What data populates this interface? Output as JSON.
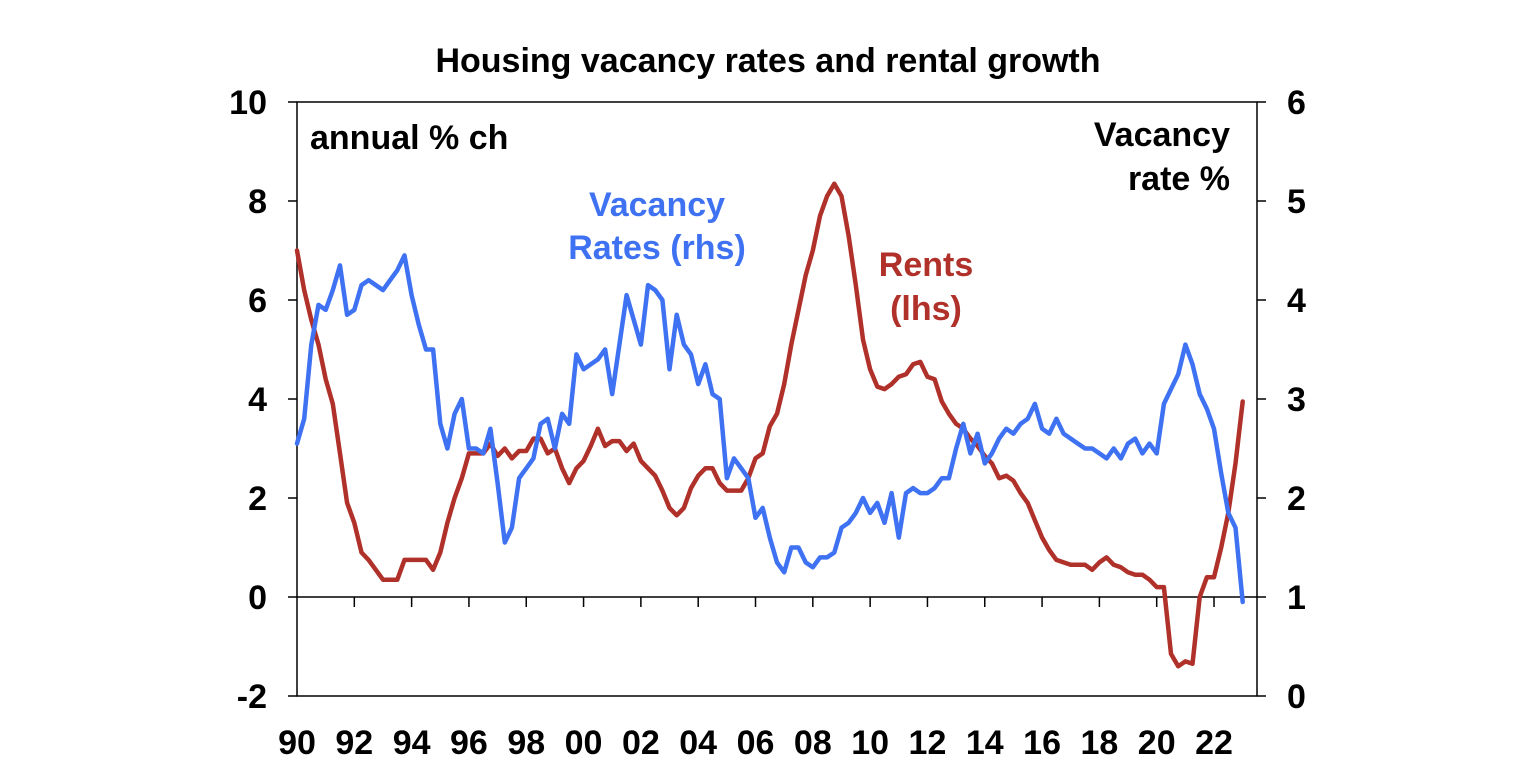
{
  "chart_data": {
    "type": "line",
    "title": "Housing vacancy rates and rental growth",
    "left_axis": {
      "label": "annual % ch",
      "ylim": [
        -2,
        10
      ],
      "ticks": [
        "10",
        "8",
        "6",
        "4",
        "2",
        "0",
        "-2"
      ],
      "tick_values": [
        10,
        8,
        6,
        4,
        2,
        0,
        -2
      ]
    },
    "right_axis": {
      "label_line1": "Vacancy",
      "label_line2": "rate %",
      "ylim": [
        0,
        6
      ],
      "ticks": [
        "6",
        "5",
        "4",
        "3",
        "2",
        "1",
        "0"
      ],
      "tick_values": [
        6,
        5,
        4,
        3,
        2,
        1,
        0
      ]
    },
    "x_ticks": [
      "90",
      "92",
      "94",
      "96",
      "98",
      "00",
      "02",
      "04",
      "06",
      "08",
      "10",
      "12",
      "14",
      "16",
      "18",
      "20",
      "22"
    ],
    "xlim": [
      1990,
      2023.5
    ],
    "series": [
      {
        "name": "Vacancy Rates (rhs)",
        "label_line1": "Vacancy",
        "label_line2": "Rates (rhs)",
        "axis": "right",
        "color": "#3E72F2",
        "x": [
          1990.0,
          1990.25,
          1990.5,
          1990.75,
          1991.0,
          1991.25,
          1991.5,
          1991.75,
          1992.0,
          1992.25,
          1992.5,
          1992.75,
          1993.0,
          1993.25,
          1993.5,
          1993.75,
          1994.0,
          1994.25,
          1994.5,
          1994.75,
          1995.0,
          1995.25,
          1995.5,
          1995.75,
          1996.0,
          1996.25,
          1996.5,
          1996.75,
          1997.0,
          1997.25,
          1997.5,
          1997.75,
          1998.0,
          1998.25,
          1998.5,
          1998.75,
          1999.0,
          1999.25,
          1999.5,
          1999.75,
          2000.0,
          2000.25,
          2000.5,
          2000.75,
          2001.0,
          2001.25,
          2001.5,
          2001.75,
          2002.0,
          2002.25,
          2002.5,
          2002.75,
          2003.0,
          2003.25,
          2003.5,
          2003.75,
          2004.0,
          2004.25,
          2004.5,
          2004.75,
          2005.0,
          2005.25,
          2005.5,
          2005.75,
          2006.0,
          2006.25,
          2006.5,
          2006.75,
          2007.0,
          2007.25,
          2007.5,
          2007.75,
          2008.0,
          2008.25,
          2008.5,
          2008.75,
          2009.0,
          2009.25,
          2009.5,
          2009.75,
          2010.0,
          2010.25,
          2010.5,
          2010.75,
          2011.0,
          2011.25,
          2011.5,
          2011.75,
          2012.0,
          2012.25,
          2012.5,
          2012.75,
          2013.0,
          2013.25,
          2013.5,
          2013.75,
          2014.0,
          2014.25,
          2014.5,
          2014.75,
          2015.0,
          2015.25,
          2015.5,
          2015.75,
          2016.0,
          2016.25,
          2016.5,
          2016.75,
          2017.0,
          2017.25,
          2017.5,
          2017.75,
          2018.0,
          2018.25,
          2018.5,
          2018.75,
          2019.0,
          2019.25,
          2019.5,
          2019.75,
          2020.0,
          2020.25,
          2020.5,
          2020.75,
          2021.0,
          2021.25,
          2021.5,
          2021.75,
          2022.0,
          2022.25,
          2022.5,
          2022.75,
          2023.0
        ],
        "values": [
          2.55,
          2.8,
          3.55,
          3.95,
          3.9,
          4.1,
          4.35,
          3.85,
          3.9,
          4.15,
          4.2,
          4.15,
          4.1,
          4.2,
          4.3,
          4.45,
          4.05,
          3.75,
          3.5,
          3.5,
          2.75,
          2.5,
          2.85,
          3.0,
          2.5,
          2.5,
          2.45,
          2.7,
          2.15,
          1.55,
          1.7,
          2.2,
          2.3,
          2.4,
          2.75,
          2.8,
          2.5,
          2.85,
          2.75,
          3.45,
          3.3,
          3.35,
          3.4,
          3.5,
          3.05,
          3.55,
          4.05,
          3.8,
          3.55,
          4.15,
          4.1,
          4.0,
          3.3,
          3.85,
          3.55,
          3.45,
          3.15,
          3.35,
          3.05,
          3.0,
          2.2,
          2.4,
          2.3,
          2.2,
          1.8,
          1.9,
          1.6,
          1.35,
          1.25,
          1.5,
          1.5,
          1.35,
          1.3,
          1.4,
          1.4,
          1.45,
          1.7,
          1.75,
          1.85,
          2.0,
          1.85,
          1.95,
          1.75,
          2.05,
          1.6,
          2.05,
          2.1,
          2.05,
          2.05,
          2.1,
          2.2,
          2.2,
          2.5,
          2.75,
          2.45,
          2.65,
          2.35,
          2.45,
          2.6,
          2.7,
          2.65,
          2.75,
          2.8,
          2.95,
          2.7,
          2.65,
          2.8,
          2.65,
          2.6,
          2.55,
          2.5,
          2.5,
          2.45,
          2.4,
          2.5,
          2.4,
          2.55,
          2.6,
          2.45,
          2.55,
          2.45,
          2.95,
          3.1,
          3.25,
          3.55,
          3.35,
          3.05,
          2.9,
          2.7,
          2.25,
          1.85,
          1.7,
          0.95
        ]
      },
      {
        "name": "Rents (lhs)",
        "label_line1": "Rents",
        "label_line2": "(lhs)",
        "axis": "left",
        "color": "#B0302A",
        "x": [
          1990.0,
          1990.25,
          1990.5,
          1990.75,
          1991.0,
          1991.25,
          1991.5,
          1991.75,
          1992.0,
          1992.25,
          1992.5,
          1992.75,
          1993.0,
          1993.25,
          1993.5,
          1993.75,
          1994.0,
          1994.25,
          1994.5,
          1994.75,
          1995.0,
          1995.25,
          1995.5,
          1995.75,
          1996.0,
          1996.25,
          1996.5,
          1996.75,
          1997.0,
          1997.25,
          1997.5,
          1997.75,
          1998.0,
          1998.25,
          1998.5,
          1998.75,
          1999.0,
          1999.25,
          1999.5,
          1999.75,
          2000.0,
          2000.25,
          2000.5,
          2000.75,
          2001.0,
          2001.25,
          2001.5,
          2001.75,
          2002.0,
          2002.25,
          2002.5,
          2002.75,
          2003.0,
          2003.25,
          2003.5,
          2003.75,
          2004.0,
          2004.25,
          2004.5,
          2004.75,
          2005.0,
          2005.25,
          2005.5,
          2005.75,
          2006.0,
          2006.25,
          2006.5,
          2006.75,
          2007.0,
          2007.25,
          2007.5,
          2007.75,
          2008.0,
          2008.25,
          2008.5,
          2008.75,
          2009.0,
          2009.25,
          2009.5,
          2009.75,
          2010.0,
          2010.25,
          2010.5,
          2010.75,
          2011.0,
          2011.25,
          2011.5,
          2011.75,
          2012.0,
          2012.25,
          2012.5,
          2012.75,
          2013.0,
          2013.25,
          2013.5,
          2013.75,
          2014.0,
          2014.25,
          2014.5,
          2014.75,
          2015.0,
          2015.25,
          2015.5,
          2015.75,
          2016.0,
          2016.25,
          2016.5,
          2016.75,
          2017.0,
          2017.25,
          2017.5,
          2017.75,
          2018.0,
          2018.25,
          2018.5,
          2018.75,
          2019.0,
          2019.25,
          2019.5,
          2019.75,
          2020.0,
          2020.25,
          2020.5,
          2020.75,
          2021.0,
          2021.25,
          2021.5,
          2021.75,
          2022.0,
          2022.25,
          2022.5,
          2022.75,
          2023.0
        ],
        "values": [
          7.0,
          6.2,
          5.6,
          5.1,
          4.4,
          3.9,
          2.9,
          1.9,
          1.5,
          0.9,
          0.75,
          0.55,
          0.35,
          0.35,
          0.35,
          0.75,
          0.75,
          0.75,
          0.75,
          0.55,
          0.9,
          1.5,
          2.0,
          2.4,
          2.9,
          2.9,
          2.9,
          3.1,
          2.85,
          3.0,
          2.8,
          2.95,
          2.95,
          3.2,
          3.2,
          2.9,
          3.0,
          2.6,
          2.3,
          2.6,
          2.75,
          3.05,
          3.4,
          3.05,
          3.15,
          3.15,
          2.95,
          3.1,
          2.75,
          2.6,
          2.45,
          2.15,
          1.8,
          1.65,
          1.8,
          2.2,
          2.45,
          2.6,
          2.6,
          2.3,
          2.15,
          2.15,
          2.15,
          2.4,
          2.8,
          2.9,
          3.45,
          3.7,
          4.3,
          5.1,
          5.8,
          6.5,
          7.0,
          7.7,
          8.1,
          8.35,
          8.1,
          7.3,
          6.3,
          5.2,
          4.6,
          4.25,
          4.2,
          4.3,
          4.45,
          4.5,
          4.7,
          4.75,
          4.45,
          4.4,
          3.95,
          3.7,
          3.5,
          3.4,
          3.2,
          3.05,
          2.85,
          2.7,
          2.4,
          2.45,
          2.35,
          2.1,
          1.9,
          1.55,
          1.2,
          0.95,
          0.75,
          0.7,
          0.65,
          0.65,
          0.65,
          0.55,
          0.7,
          0.8,
          0.65,
          0.6,
          0.5,
          0.45,
          0.45,
          0.35,
          0.2,
          0.2,
          -1.15,
          -1.4,
          -1.3,
          -1.35,
          0.0,
          0.4,
          0.4,
          1.0,
          1.7,
          2.7,
          3.95
        ]
      }
    ]
  }
}
